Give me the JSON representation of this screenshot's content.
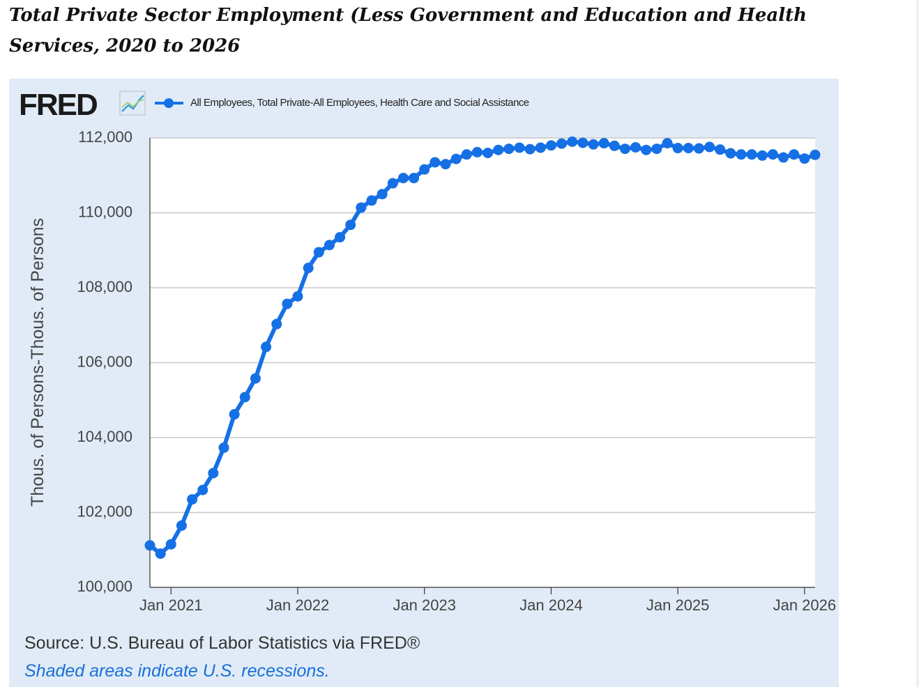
{
  "article": {
    "title": "Total Private Sector Employment (Less Government and Education and Health Services, 2020 to 2026"
  },
  "fred": {
    "logo_text": "FRED",
    "source": "Source: U.S. Bureau of Labor Statistics via FRED®",
    "recession_note": "Shaded areas indicate U.S. recessions."
  },
  "colors": {
    "series": "#1670e5",
    "panel_bg": "#e1ebf7",
    "plot_bg": "#ffffff",
    "grid": "#c8c8c8",
    "logo": "#1a1a1a"
  },
  "chart_data": {
    "type": "line",
    "title": "",
    "xlabel": "",
    "ylabel": "Thous. of Persons-Thous. of Persons",
    "ylim": [
      100000,
      112000
    ],
    "yticks": [
      100000,
      102000,
      104000,
      106000,
      108000,
      110000,
      112000
    ],
    "ytick_labels": [
      "100,000",
      "102,000",
      "104,000",
      "106,000",
      "108,000",
      "110,000",
      "112,000"
    ],
    "xticks": [
      {
        "label": "Jan 2021",
        "index": 2
      },
      {
        "label": "Jan 2022",
        "index": 14
      },
      {
        "label": "Jan 2023",
        "index": 26
      },
      {
        "label": "Jan 2024",
        "index": 38
      },
      {
        "label": "Jan 2025",
        "index": 50
      },
      {
        "label": "Jan 2026",
        "index": 62
      }
    ],
    "grid": true,
    "legend_position": "top",
    "series": [
      {
        "name": "All Employees, Total Private-All Employees, Health Care and Social Assistance",
        "start": "2020-11",
        "frequency": "monthly",
        "values": [
          101120,
          100900,
          101150,
          101650,
          102350,
          102600,
          103050,
          103730,
          104620,
          105080,
          105580,
          106420,
          107030,
          107570,
          107770,
          108530,
          108950,
          109140,
          109350,
          109680,
          110140,
          110330,
          110500,
          110790,
          110930,
          110930,
          111160,
          111350,
          111300,
          111440,
          111560,
          111620,
          111600,
          111680,
          111710,
          111740,
          111700,
          111740,
          111800,
          111850,
          111900,
          111870,
          111830,
          111860,
          111790,
          111710,
          111750,
          111680,
          111710,
          111860,
          111730,
          111730,
          111720,
          111760,
          111690,
          111590,
          111560,
          111560,
          111530,
          111560,
          111480,
          111560,
          111450,
          111550
        ]
      }
    ]
  }
}
